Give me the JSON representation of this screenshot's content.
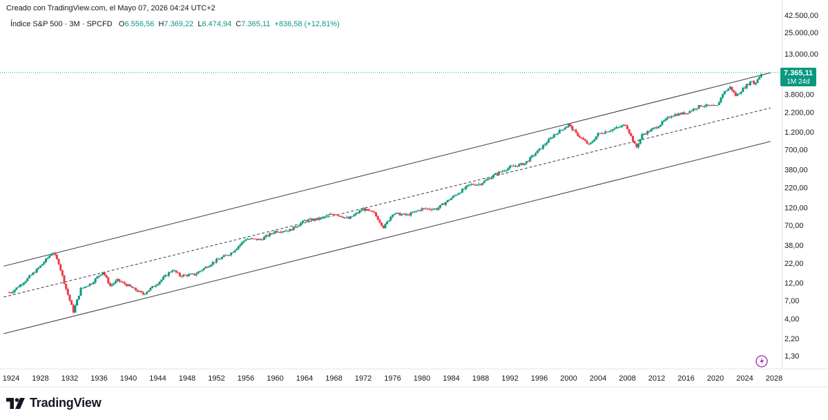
{
  "header": {
    "created_text": "Creado con TradingView.com, el Mayo 07, 2026 04:24 UTC+2"
  },
  "legend": {
    "symbol": "Índice S&P 500 · 3M · SPCFD",
    "o_label": "O",
    "o_value": "6.556,56",
    "h_label": "H",
    "h_value": "7.369,22",
    "l_label": "L",
    "l_value": "6.474,94",
    "c_label": "C",
    "c_value": "7.365,11",
    "change": "+836,58 (+12,81%)"
  },
  "price_badge": {
    "price": "7.365,11",
    "countdown": "1M 24d",
    "color": "#089981"
  },
  "colors": {
    "up": "#089981",
    "down": "#f23645",
    "channel": "#3a3a3a",
    "lightning": "#9c27b0"
  },
  "footer": {
    "logo_text": "TradingView"
  },
  "chart_data": {
    "type": "candlestick",
    "y_scale": "log",
    "y_ticks": [
      {
        "value": 42500,
        "label": "42.500,00"
      },
      {
        "value": 25000,
        "label": "25.000,00"
      },
      {
        "value": 13000,
        "label": "13.000,00"
      },
      {
        "value": 3800,
        "label": "3.800,00"
      },
      {
        "value": 2200,
        "label": "2.200,00"
      },
      {
        "value": 1200,
        "label": "1.200,00"
      },
      {
        "value": 700,
        "label": "700,00"
      },
      {
        "value": 380,
        "label": "380,00"
      },
      {
        "value": 220,
        "label": "220,00"
      },
      {
        "value": 120,
        "label": "120,00"
      },
      {
        "value": 70,
        "label": "70,00"
      },
      {
        "value": 38,
        "label": "38,00"
      },
      {
        "value": 22,
        "label": "22,00"
      },
      {
        "value": 12,
        "label": "12,00"
      },
      {
        "value": 7,
        "label": "7,00"
      },
      {
        "value": 4,
        "label": "4,00"
      },
      {
        "value": 2.2,
        "label": "2,20"
      },
      {
        "value": 1.3,
        "label": "1,30"
      }
    ],
    "x_ticks": [
      "1924",
      "1928",
      "1932",
      "1936",
      "1940",
      "1944",
      "1948",
      "1952",
      "1956",
      "1960",
      "1964",
      "1968",
      "1972",
      "1976",
      "1980",
      "1984",
      "1988",
      "1992",
      "1996",
      "2000",
      "2004",
      "2008",
      "2012",
      "2016",
      "2020",
      "2024",
      "2028"
    ],
    "last_close": 7365.11,
    "price_path": [
      [
        1924,
        9
      ],
      [
        1926,
        13
      ],
      [
        1928,
        20
      ],
      [
        1929.7,
        31
      ],
      [
        1930.5,
        22
      ],
      [
        1931.5,
        10
      ],
      [
        1932.5,
        5
      ],
      [
        1933.5,
        10
      ],
      [
        1935,
        12
      ],
      [
        1936.5,
        17
      ],
      [
        1937.5,
        11
      ],
      [
        1938.5,
        13
      ],
      [
        1940,
        11
      ],
      [
        1942,
        8.5
      ],
      [
        1944,
        12
      ],
      [
        1946,
        18
      ],
      [
        1947,
        15
      ],
      [
        1949,
        15.5
      ],
      [
        1952,
        24
      ],
      [
        1954,
        30
      ],
      [
        1956,
        46
      ],
      [
        1958,
        45
      ],
      [
        1960,
        58
      ],
      [
        1962,
        60
      ],
      [
        1964,
        80
      ],
      [
        1966,
        85
      ],
      [
        1968,
        100
      ],
      [
        1970,
        85
      ],
      [
        1972,
        115
      ],
      [
        1973.5,
        100
      ],
      [
        1974.8,
        65
      ],
      [
        1976,
        100
      ],
      [
        1978,
        95
      ],
      [
        1980,
        115
      ],
      [
        1982,
        115
      ],
      [
        1984,
        160
      ],
      [
        1986.5,
        240
      ],
      [
        1987.9,
        245
      ],
      [
        1990,
        330
      ],
      [
        1992,
        410
      ],
      [
        1994,
        460
      ],
      [
        1996,
        700
      ],
      [
        1998,
        1100
      ],
      [
        2000,
        1500
      ],
      [
        2001,
        1150
      ],
      [
        2002.8,
        800
      ],
      [
        2004,
        1130
      ],
      [
        2006,
        1300
      ],
      [
        2007.8,
        1500
      ],
      [
        2009.2,
        735
      ],
      [
        2010,
        1100
      ],
      [
        2012,
        1400
      ],
      [
        2014,
        2000
      ],
      [
        2016,
        2150
      ],
      [
        2018,
        2700
      ],
      [
        2020.2,
        2600
      ],
      [
        2021,
        3900
      ],
      [
        2022,
        4700
      ],
      [
        2022.8,
        3600
      ],
      [
        2024,
        4750
      ],
      [
        2025,
        5800
      ],
      [
        2025.3,
        5100
      ],
      [
        2026.3,
        7365
      ]
    ],
    "channel": {
      "upper": [
        [
          1923,
          20
        ],
        [
          2027.5,
          7300
        ]
      ],
      "middle": [
        [
          1923,
          7.8
        ],
        [
          2027.5,
          2500
        ]
      ],
      "lower": [
        [
          1923,
          2.55
        ],
        [
          2027.5,
          900
        ]
      ]
    }
  }
}
